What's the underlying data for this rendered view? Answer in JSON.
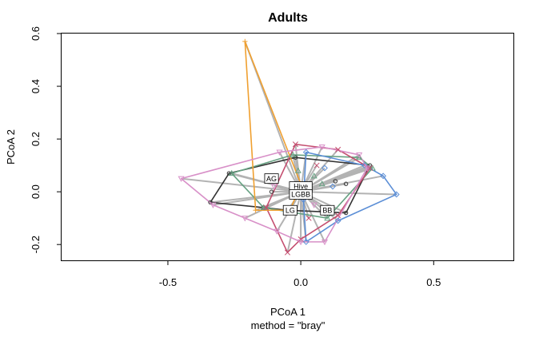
{
  "chart_data": {
    "type": "scatter",
    "title": "Adults",
    "xlabel": "PCoA 1",
    "subtitle": "method = \"bray\"",
    "ylabel": "PCoA 2",
    "xlim": [
      -0.9,
      0.8
    ],
    "ylim": [
      -0.26,
      0.6
    ],
    "x_ticks": [
      -0.5,
      0.0,
      0.5
    ],
    "x_tick_labels": [
      "-0.5",
      "0.0",
      "0.5"
    ],
    "y_ticks": [
      -0.2,
      0.0,
      0.2,
      0.4,
      0.6
    ],
    "y_tick_labels": [
      "-0.2",
      "0.0",
      "0.2",
      "0.4",
      "0.6"
    ],
    "spider_center": [
      0.0,
      0.0
    ],
    "spider_color": "#b3b3b3",
    "groups": [
      {
        "label": "AG",
        "color": "#333333",
        "marker": "circle",
        "centroid": [
          -0.11,
          0.05
        ],
        "hull": [
          [
            -0.34,
            -0.04
          ],
          [
            -0.27,
            0.07
          ],
          [
            -0.02,
            0.13
          ],
          [
            0.26,
            0.1
          ],
          [
            0.17,
            -0.08
          ],
          [
            -0.05,
            -0.07
          ],
          [
            -0.14,
            -0.06
          ]
        ],
        "points": [
          [
            -0.34,
            -0.04
          ],
          [
            -0.27,
            0.07
          ],
          [
            -0.02,
            0.13
          ],
          [
            0.26,
            0.1
          ],
          [
            0.17,
            -0.08
          ],
          [
            -0.05,
            -0.07
          ],
          [
            -0.14,
            -0.06
          ],
          [
            0.17,
            0.03
          ],
          [
            0.13,
            0.04
          ],
          [
            -0.11,
            0.0
          ]
        ]
      },
      {
        "label": "Hive",
        "color": "#66a182",
        "marker": "triangle",
        "centroid": [
          0.0,
          0.02
        ],
        "hull": [
          [
            -0.26,
            0.07
          ],
          [
            -0.03,
            0.14
          ],
          [
            0.22,
            0.13
          ],
          [
            0.27,
            0.09
          ],
          [
            0.1,
            -0.1
          ],
          [
            -0.14,
            -0.06
          ]
        ],
        "points": [
          [
            -0.26,
            0.07
          ],
          [
            -0.03,
            0.14
          ],
          [
            0.22,
            0.13
          ],
          [
            0.27,
            0.09
          ],
          [
            0.1,
            -0.1
          ],
          [
            -0.14,
            -0.06
          ],
          [
            0.05,
            0.06
          ],
          [
            0.08,
            0.03
          ],
          [
            -0.01,
            0.08
          ]
        ]
      },
      {
        "label": "BB",
        "color": "#5b8ed6",
        "marker": "diamond",
        "centroid": [
          0.1,
          -0.07
        ],
        "hull": [
          [
            0.02,
            0.15
          ],
          [
            0.24,
            0.1
          ],
          [
            0.31,
            0.06
          ],
          [
            0.36,
            -0.01
          ],
          [
            0.14,
            -0.11
          ],
          [
            0.02,
            -0.19
          ],
          [
            0.01,
            -0.03
          ]
        ],
        "points": [
          [
            0.02,
            0.15
          ],
          [
            0.24,
            0.1
          ],
          [
            0.31,
            0.06
          ],
          [
            0.36,
            -0.01
          ],
          [
            0.14,
            -0.11
          ],
          [
            0.02,
            -0.19
          ],
          [
            0.01,
            -0.03
          ],
          [
            0.09,
            0.09
          ],
          [
            0.12,
            0.02
          ]
        ]
      },
      {
        "label": "LGBB",
        "color": "#c44e6f",
        "marker": "cross",
        "centroid": [
          0.0,
          -0.01
        ],
        "hull": [
          [
            -0.02,
            0.18
          ],
          [
            0.14,
            0.16
          ],
          [
            0.26,
            0.09
          ],
          [
            0.14,
            -0.09
          ],
          [
            0.0,
            -0.18
          ],
          [
            -0.05,
            -0.23
          ],
          [
            -0.13,
            -0.06
          ]
        ],
        "points": [
          [
            -0.02,
            0.18
          ],
          [
            0.14,
            0.16
          ],
          [
            0.26,
            0.09
          ],
          [
            0.14,
            -0.09
          ],
          [
            0.0,
            -0.18
          ],
          [
            -0.05,
            -0.23
          ],
          [
            -0.13,
            -0.06
          ],
          [
            0.03,
            -0.1
          ],
          [
            0.06,
            0.1
          ]
        ]
      },
      {
        "label": "LG",
        "color": "#f0a030",
        "marker": "plus",
        "centroid": [
          -0.04,
          -0.07
        ],
        "hull": [
          [
            -0.21,
            0.57
          ],
          [
            0.0,
            0.03
          ],
          [
            -0.04,
            -0.07
          ],
          [
            -0.17,
            -0.07
          ]
        ],
        "points": [
          [
            -0.21,
            0.57
          ],
          [
            0.0,
            0.03
          ],
          [
            -0.04,
            -0.07
          ],
          [
            -0.17,
            -0.07
          ]
        ]
      },
      {
        "label": "",
        "color": "#d890c8",
        "marker": "triangle-down",
        "centroid": [
          0.0,
          0.0
        ],
        "hull": [
          [
            -0.45,
            0.05
          ],
          [
            -0.08,
            0.15
          ],
          [
            0.08,
            0.17
          ],
          [
            0.22,
            0.14
          ],
          [
            0.25,
            0.09
          ],
          [
            0.09,
            -0.19
          ],
          [
            0.0,
            -0.19
          ],
          [
            -0.09,
            -0.15
          ],
          [
            -0.21,
            -0.1
          ],
          [
            -0.33,
            -0.05
          ]
        ],
        "points": [
          [
            -0.45,
            0.05
          ],
          [
            -0.08,
            0.15
          ],
          [
            0.08,
            0.17
          ],
          [
            0.22,
            0.14
          ],
          [
            0.25,
            0.09
          ],
          [
            0.09,
            -0.19
          ],
          [
            0.0,
            -0.19
          ],
          [
            -0.09,
            -0.15
          ],
          [
            -0.21,
            -0.1
          ],
          [
            -0.33,
            -0.05
          ],
          [
            0.05,
            -0.05
          ],
          [
            -0.1,
            0.02
          ]
        ]
      }
    ]
  }
}
